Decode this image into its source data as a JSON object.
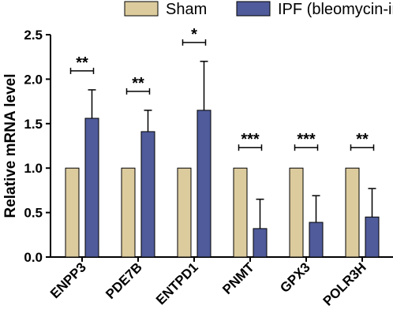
{
  "chart_data": {
    "type": "bar",
    "ylabel": "Relative mRNA level",
    "xlabel": "",
    "ylim": [
      0,
      2.5
    ],
    "yticks": [
      "0.0",
      "0.5",
      "1.0",
      "1.5",
      "2.0",
      "2.5"
    ],
    "categories": [
      "ENPP3",
      "PDE7B",
      "ENTPD1",
      "PNMT",
      "GPX3",
      "POLR3H"
    ],
    "series": [
      {
        "name": "Sham",
        "color": "#dccb9d",
        "values": [
          1.0,
          1.0,
          1.0,
          1.0,
          1.0,
          1.0
        ],
        "error": [
          0,
          0,
          0,
          0,
          0,
          0
        ]
      },
      {
        "name": "IPF (bleomycin-induced)",
        "color": "#4f5b9a",
        "values": [
          1.56,
          1.41,
          1.65,
          0.32,
          0.39,
          0.45
        ],
        "error": [
          0.32,
          0.24,
          0.55,
          0.33,
          0.3,
          0.32
        ]
      }
    ],
    "significance": [
      "**",
      "**",
      "*",
      "***",
      "***",
      "**"
    ],
    "legend_position": "top",
    "grid": false
  }
}
